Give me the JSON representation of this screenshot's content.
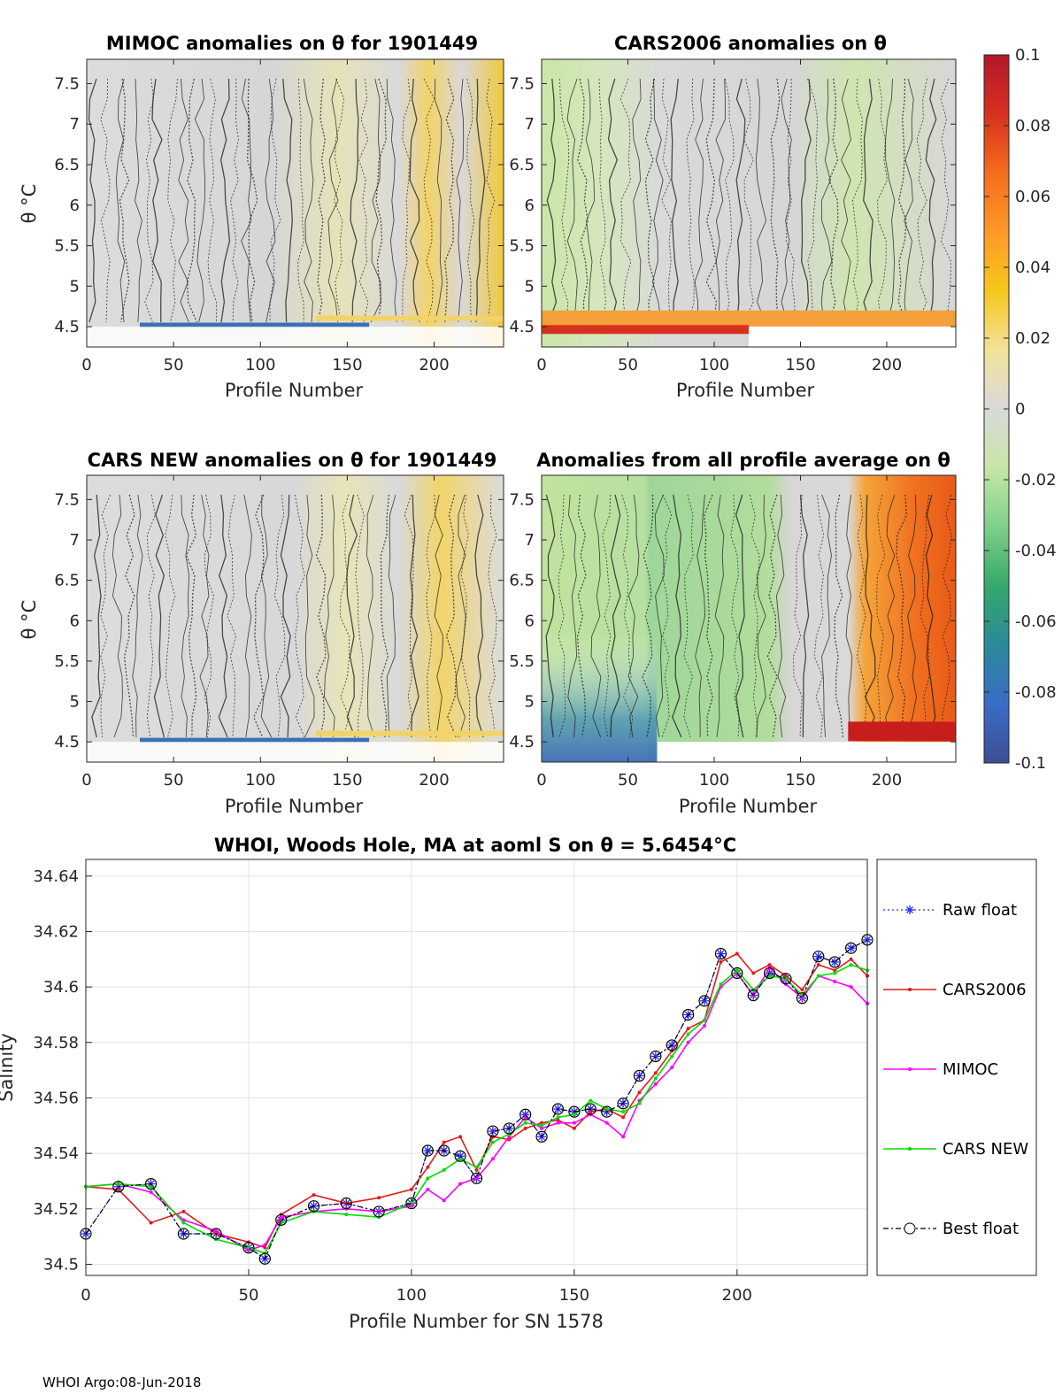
{
  "chart_data": [
    {
      "type": "heatmap",
      "title": "MIMOC anomalies on θ  for 1901449",
      "xlabel": "Profile Number",
      "ylabel": "θ °C",
      "xlim": [
        0,
        240
      ],
      "ylim": [
        4.25,
        7.8
      ],
      "xticks": [
        0,
        50,
        100,
        150,
        200
      ],
      "yticks": [
        4.5,
        5,
        5.5,
        6,
        6.5,
        7,
        7.5
      ]
    },
    {
      "type": "heatmap",
      "title": "CARS2006 anomalies on θ",
      "xlabel": "Profile Number",
      "ylabel": "",
      "xlim": [
        0,
        240
      ],
      "ylim": [
        4.25,
        7.8
      ],
      "xticks": [
        0,
        50,
        100,
        150,
        200
      ],
      "yticks": [
        4.5,
        5,
        5.5,
        6,
        6.5,
        7,
        7.5
      ]
    },
    {
      "type": "heatmap",
      "title": "CARS NEW anomalies on θ for 1901449",
      "xlabel": "Profile Number",
      "ylabel": "θ °C",
      "xlim": [
        0,
        240
      ],
      "ylim": [
        4.25,
        7.8
      ],
      "xticks": [
        0,
        50,
        100,
        150,
        200
      ],
      "yticks": [
        4.5,
        5,
        5.5,
        6,
        6.5,
        7,
        7.5
      ]
    },
    {
      "type": "heatmap",
      "title": "Anomalies from all profile average on θ",
      "xlabel": "Profile Number",
      "ylabel": "",
      "xlim": [
        0,
        240
      ],
      "ylim": [
        4.25,
        7.8
      ],
      "xticks": [
        0,
        50,
        100,
        150,
        200
      ],
      "yticks": [
        4.5,
        5,
        5.5,
        6,
        6.5,
        7,
        7.5
      ]
    },
    {
      "type": "colorbar",
      "range": [
        -0.1,
        0.1
      ],
      "tick_labels": [
        "0.1",
        "0.08",
        "0.06",
        "0.04",
        "0.02",
        "0",
        "-0.02",
        "-0.04",
        "-0.06",
        "-0.08",
        "-0.1"
      ],
      "colors": [
        "#b2182b",
        "#d7301f",
        "#f46d1e",
        "#fe9929",
        "#f5c71a",
        "#f2e29a",
        "#d9d9d9",
        "#c7e6a6",
        "#7fcf8a",
        "#35a86a",
        "#2a8a9a",
        "#3b6cc7",
        "#3c4e94"
      ]
    },
    {
      "type": "line",
      "title": "WHOI, Woods Hole, MA at aoml S on θ = 5.6454°C",
      "xlabel": "Profile Number for SN 1578",
      "ylabel": "Salinity",
      "xlim": [
        0,
        240
      ],
      "ylim": [
        34.496,
        34.646
      ],
      "xticks": [
        0,
        50,
        100,
        150,
        200
      ],
      "yticks": [
        34.5,
        34.52,
        34.54,
        34.56,
        34.58,
        34.6,
        34.62,
        34.64
      ],
      "grid": true,
      "legend_position": "outside-right",
      "x": [
        0,
        10,
        20,
        30,
        40,
        50,
        55,
        60,
        70,
        80,
        90,
        100,
        105,
        110,
        115,
        120,
        125,
        130,
        135,
        140,
        145,
        150,
        155,
        160,
        165,
        170,
        175,
        180,
        185,
        190,
        195,
        200,
        205,
        210,
        215,
        220,
        225,
        230,
        235,
        240
      ],
      "series": [
        {
          "name": "Raw float",
          "color": "#2a2aff",
          "values": [
            34.511,
            34.528,
            34.529,
            34.511,
            34.511,
            34.506,
            34.502,
            34.516,
            34.521,
            34.522,
            34.519,
            34.522,
            34.541,
            34.541,
            34.539,
            34.531,
            34.548,
            34.549,
            34.554,
            34.546,
            34.556,
            34.555,
            34.556,
            34.555,
            34.558,
            34.568,
            34.575,
            34.579,
            34.59,
            34.595,
            34.612,
            34.605,
            34.597,
            34.605,
            34.603,
            34.596,
            34.611,
            34.609,
            34.614,
            34.617
          ]
        },
        {
          "name": "CARS2006",
          "color": "#e31a1c",
          "values": [
            34.528,
            34.527,
            34.515,
            34.519,
            34.511,
            34.508,
            34.506,
            34.518,
            34.525,
            34.522,
            34.524,
            34.527,
            34.535,
            34.544,
            34.546,
            34.534,
            34.546,
            34.545,
            34.549,
            34.551,
            34.552,
            34.549,
            34.555,
            34.556,
            34.553,
            34.562,
            34.569,
            34.577,
            34.585,
            34.588,
            34.609,
            34.612,
            34.605,
            34.608,
            34.604,
            34.599,
            34.608,
            34.606,
            34.61,
            34.604
          ]
        },
        {
          "name": "MIMOC",
          "color": "#ff00ff",
          "values": [
            34.528,
            34.529,
            34.526,
            34.516,
            34.512,
            34.505,
            34.507,
            34.517,
            34.519,
            34.52,
            34.519,
            34.521,
            34.527,
            34.523,
            34.529,
            34.531,
            34.538,
            34.546,
            34.553,
            34.549,
            34.551,
            34.551,
            34.554,
            34.551,
            34.546,
            34.559,
            34.565,
            34.571,
            34.58,
            34.586,
            34.6,
            34.605,
            34.597,
            34.607,
            34.601,
            34.596,
            34.604,
            34.602,
            34.6,
            34.594
          ]
        },
        {
          "name": "CARS NEW",
          "color": "#00dd00",
          "values": [
            34.528,
            34.529,
            34.528,
            34.515,
            34.509,
            34.506,
            34.504,
            34.515,
            34.519,
            34.518,
            34.517,
            34.522,
            34.531,
            34.534,
            34.538,
            34.535,
            34.544,
            34.547,
            34.551,
            34.55,
            34.553,
            34.554,
            34.559,
            34.556,
            34.555,
            34.558,
            34.567,
            34.575,
            34.583,
            34.588,
            34.601,
            34.606,
            34.599,
            34.604,
            34.603,
            34.597,
            34.604,
            34.605,
            34.608,
            34.606
          ]
        },
        {
          "name": "Best float",
          "color": "#000000",
          "values": [
            34.511,
            34.528,
            34.529,
            34.511,
            34.511,
            34.506,
            34.502,
            34.516,
            34.521,
            34.522,
            34.519,
            34.522,
            34.541,
            34.541,
            34.539,
            34.531,
            34.548,
            34.549,
            34.554,
            34.546,
            34.556,
            34.555,
            34.556,
            34.555,
            34.558,
            34.568,
            34.575,
            34.579,
            34.59,
            34.595,
            34.612,
            34.605,
            34.597,
            34.605,
            34.603,
            34.596,
            34.611,
            34.609,
            34.614,
            34.617
          ]
        }
      ]
    }
  ],
  "footer": "WHOI Argo:08-Jun-2018"
}
